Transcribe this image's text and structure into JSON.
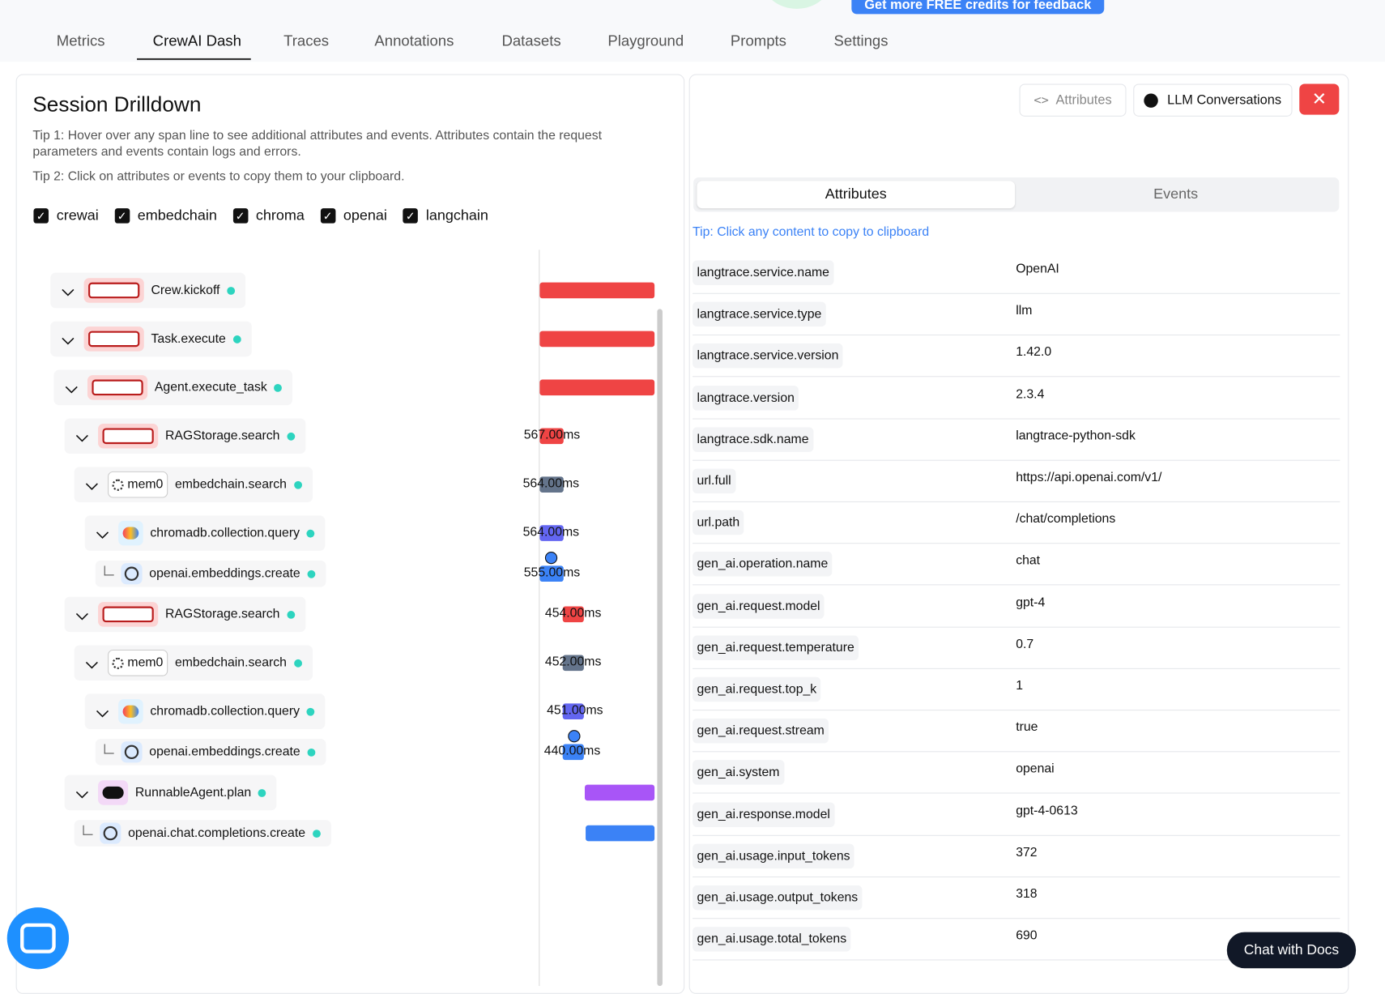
{
  "banner": {
    "button": "Get more FREE credits for feedback"
  },
  "tabs": [
    "Metrics",
    "CrewAI Dash",
    "Traces",
    "Annotations",
    "Datasets",
    "Playground",
    "Prompts",
    "Settings"
  ],
  "drilldown": {
    "title": "Session Drilldown",
    "tips": [
      "Tip 1: Hover over any span line to see additional attributes and events. Attributes contain the request parameters and events contain logs and errors.",
      "Tip 2: Click on attributes or events to copy them to your clipboard."
    ],
    "filters": [
      "crewai",
      "embedchain",
      "chroma",
      "openai",
      "langchain"
    ],
    "spans": [
      {
        "name": "Crew.kickoff"
      },
      {
        "name": "Task.execute"
      },
      {
        "name": "Agent.execute_task"
      },
      {
        "name": "RAGStorage.search",
        "duration": "567.00ms"
      },
      {
        "name": "embedchain.search",
        "badge": "mem0",
        "duration": "564.00ms"
      },
      {
        "name": "chromadb.collection.query",
        "duration": "564.00ms"
      },
      {
        "name": "openai.embeddings.create",
        "duration": "555.00ms"
      },
      {
        "name": "RAGStorage.search",
        "duration": "454.00ms"
      },
      {
        "name": "embedchain.search",
        "badge": "mem0",
        "duration": "452.00ms"
      },
      {
        "name": "chromadb.collection.query",
        "duration": "451.00ms"
      },
      {
        "name": "openai.embeddings.create",
        "duration": "440.00ms"
      },
      {
        "name": "RunnableAgent.plan"
      },
      {
        "name": "openai.chat.completions.create"
      }
    ]
  },
  "detail": {
    "buttons": [
      "Attributes",
      "LLM Conversations"
    ],
    "tabs": [
      "Attributes",
      "Events"
    ],
    "tip": "Tip: Click any content to copy to clipboard",
    "attributes": [
      [
        "langtrace.service.name",
        "OpenAI"
      ],
      [
        "langtrace.service.type",
        "llm"
      ],
      [
        "langtrace.service.version",
        "1.42.0"
      ],
      [
        "langtrace.version",
        "2.3.4"
      ],
      [
        "langtrace.sdk.name",
        "langtrace-python-sdk"
      ],
      [
        "url.full",
        "https://api.openai.com/v1/"
      ],
      [
        "url.path",
        "/chat/completions"
      ],
      [
        "gen_ai.operation.name",
        "chat"
      ],
      [
        "gen_ai.request.model",
        "gpt-4"
      ],
      [
        "gen_ai.request.temperature",
        "0.7"
      ],
      [
        "gen_ai.request.top_k",
        "1"
      ],
      [
        "gen_ai.request.stream",
        "true"
      ],
      [
        "gen_ai.system",
        "openai"
      ],
      [
        "gen_ai.response.model",
        "gpt-4-0613"
      ],
      [
        "gen_ai.usage.input_tokens",
        "372"
      ],
      [
        "gen_ai.usage.output_tokens",
        "318"
      ],
      [
        "gen_ai.usage.total_tokens",
        "690"
      ]
    ]
  },
  "chat": "Chat with Docs"
}
